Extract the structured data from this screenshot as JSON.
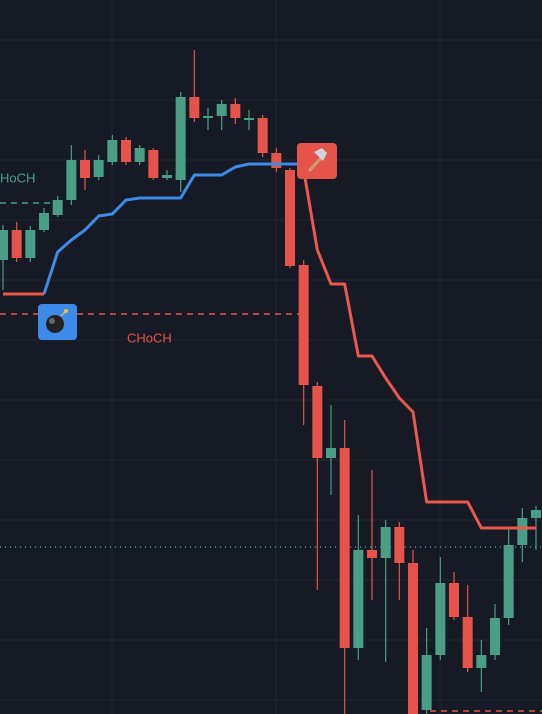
{
  "chart_data": {
    "type": "candlestick",
    "ylim": [
      0,
      714
    ],
    "up_color": "#4a9e86",
    "down_color": "#e5534b",
    "annotations": [
      "HoCH",
      "CHoCH"
    ],
    "open": [
      454,
      484,
      456,
      484,
      499,
      514,
      554,
      537,
      552,
      574,
      552,
      564,
      536,
      534,
      617,
      596,
      598,
      610,
      594,
      596,
      561,
      544,
      449,
      328,
      256,
      266,
      66,
      164,
      156,
      187,
      151,
      4,
      59,
      131,
      97,
      46,
      59,
      96,
      169,
      196
    ],
    "high": [
      489,
      492,
      488,
      506,
      518,
      569,
      564,
      559,
      579,
      577,
      569,
      566,
      544,
      622,
      664,
      606,
      614,
      616,
      604,
      599,
      566,
      546,
      454,
      332,
      309,
      294,
      199,
      244,
      194,
      192,
      164,
      86,
      157,
      142,
      129,
      74,
      110,
      186,
      206,
      208
    ],
    "low": [
      424,
      452,
      452,
      482,
      497,
      509,
      524,
      534,
      549,
      549,
      549,
      534,
      534,
      522,
      592,
      584,
      584,
      590,
      584,
      557,
      542,
      446,
      289,
      124,
      219,
      0,
      54,
      114,
      52,
      114,
      0,
      0,
      54,
      94,
      42,
      22,
      54,
      89,
      152,
      164
    ],
    "close": [
      484,
      456,
      484,
      501,
      514,
      554,
      536,
      554,
      574,
      552,
      566,
      536,
      539,
      617,
      596,
      598,
      610,
      596,
      596,
      561,
      546,
      448,
      329,
      256,
      266,
      66,
      164,
      156,
      187,
      151,
      0,
      59,
      131,
      97,
      46,
      59,
      96,
      169,
      196,
      204
    ],
    "series": [
      {
        "color": "#3d8be8",
        "values": [
          null,
          null,
          null,
          420,
          462,
          474,
          484,
          498,
          500,
          514,
          516,
          516,
          516,
          516,
          539,
          539,
          539,
          547,
          550,
          550,
          550,
          550,
          550,
          null,
          null,
          null,
          null,
          null,
          null,
          null,
          null,
          null,
          null,
          null,
          null,
          null,
          null,
          null,
          null,
          null
        ]
      },
      {
        "color": "#e8584e",
        "values": [
          420,
          420,
          420,
          420,
          null,
          null,
          null,
          null,
          null,
          null,
          null,
          null,
          null,
          null,
          null,
          null,
          null,
          null,
          null,
          null,
          null,
          null,
          544,
          464,
          430,
          430,
          358,
          358,
          336,
          316,
          302,
          212,
          212,
          212,
          212,
          186,
          186,
          186,
          186,
          186
        ]
      }
    ]
  }
}
